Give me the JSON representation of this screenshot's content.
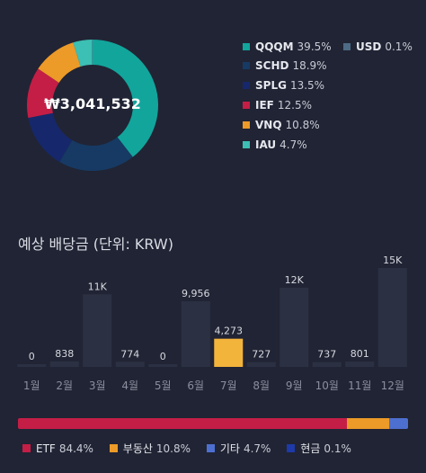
{
  "portfolio": {
    "total": "₩3,041,532",
    "holdings": [
      {
        "name": "QQQM",
        "pct": "39.5%",
        "value": 39.5,
        "color": "#12a59c"
      },
      {
        "name": "SCHD",
        "pct": "18.9%",
        "value": 18.9,
        "color": "#163a63"
      },
      {
        "name": "SPLG",
        "pct": "13.5%",
        "value": 13.5,
        "color": "#16286b"
      },
      {
        "name": "IEF",
        "pct": "12.5%",
        "value": 12.5,
        "color": "#c41e46"
      },
      {
        "name": "VNQ",
        "pct": "10.8%",
        "value": 10.8,
        "color": "#ec9a28"
      },
      {
        "name": "IAU",
        "pct": "4.7%",
        "value": 4.7,
        "color": "#3cbfb4"
      },
      {
        "name": "USD",
        "pct": "0.1%",
        "value": 0.1,
        "color": "#4d6a86"
      }
    ]
  },
  "dividends": {
    "title": "예상 배당금 (단위: KRW)",
    "accent": "#f3b43c",
    "bar_color": "#2b3142",
    "highlight_index": 6
  },
  "chart_data": {
    "type": "bar",
    "categories": [
      "1월",
      "2월",
      "3월",
      "4월",
      "5월",
      "6월",
      "7월",
      "8월",
      "9월",
      "10월",
      "11월",
      "12월"
    ],
    "values": [
      0,
      838,
      11000,
      774,
      0,
      9956,
      4273,
      727,
      12000,
      737,
      801,
      15000
    ],
    "labels": [
      "0",
      "838",
      "11K",
      "774",
      "0",
      "9,956",
      "4,273",
      "727",
      "12K",
      "737",
      "801",
      "15K"
    ],
    "title": "예상 배당금 (단위: KRW)"
  },
  "allocation": {
    "segments": [
      {
        "name": "ETF",
        "pct": "84.4%",
        "value": 84.4,
        "color": "#c41e46"
      },
      {
        "name": "부동산",
        "pct": "10.8%",
        "value": 10.8,
        "color": "#ec9a28"
      },
      {
        "name": "기타",
        "pct": "4.7%",
        "value": 4.7,
        "color": "#4d6fcf"
      },
      {
        "name": "현금",
        "pct": "0.1%",
        "value": 0.1,
        "color": "#1d3aa8"
      }
    ]
  }
}
